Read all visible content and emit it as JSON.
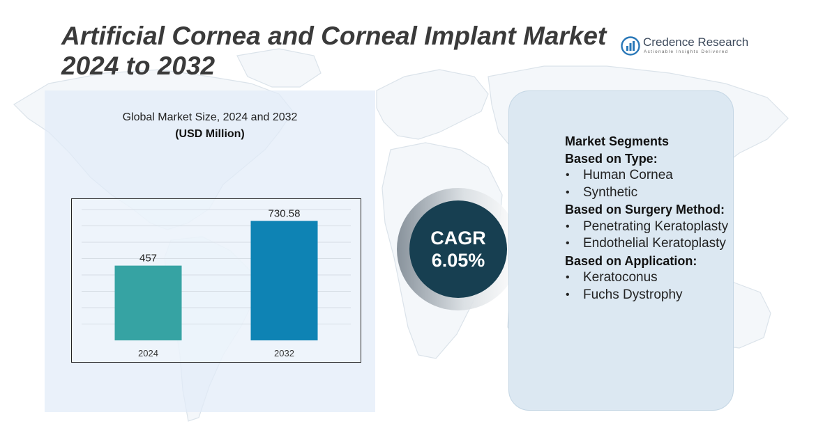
{
  "header": {
    "title": "Artificial Cornea and Corneal Implant Market 2024 to 2032"
  },
  "logo": {
    "name": "Credence Research",
    "tagline": "Actionable Insights Delivered",
    "icon": "bar-chart-circle-icon"
  },
  "chart_data": {
    "type": "bar",
    "title": "Global Market Size, 2024 and 2032",
    "subtitle": "(USD Million)",
    "categories": [
      "2024",
      "2032"
    ],
    "values": [
      457,
      730.58
    ],
    "value_labels": [
      "457",
      "730.58"
    ],
    "colors": [
      "#36a3a3",
      "#0e83b4"
    ],
    "ylim": [
      0,
      800
    ],
    "grid": true,
    "legend": "none"
  },
  "cagr": {
    "label": "CAGR",
    "value": "6.05%"
  },
  "segments": {
    "heading": "Market Segments",
    "groups": [
      {
        "title": "Based on Type:",
        "items": [
          "Human Cornea",
          "Synthetic"
        ]
      },
      {
        "title": "Based on Surgery Method:",
        "items": [
          "Penetrating Keratoplasty",
          "Endothelial Keratoplasty"
        ]
      },
      {
        "title": "Based on Application:",
        "items": [
          "Keratoconus",
          "Fuchs Dystrophy"
        ]
      }
    ]
  }
}
